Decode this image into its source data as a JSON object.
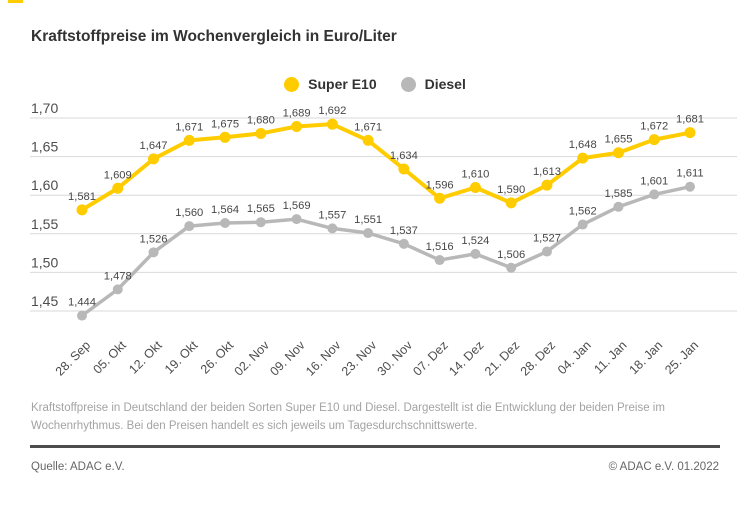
{
  "header": {
    "title": "Kraftstoffpreise im Wochenvergleich in Euro/Liter"
  },
  "chart_data": {
    "type": "line",
    "title": "Kraftstoffpreise im Wochenvergleich in Euro/Liter",
    "unit": "Euro/Liter",
    "x": [
      "28. Sep",
      "05. Okt",
      "12. Okt",
      "19. Okt",
      "26. Okt",
      "02. Nov",
      "09. Nov",
      "16. Nov",
      "23. Nov",
      "30. Nov",
      "07. Dez",
      "14. Dez",
      "21. Dez",
      "28. Dez",
      "04. Jan",
      "11. Jan",
      "18. Jan",
      "25. Jan"
    ],
    "series": [
      {
        "name": "Super E10",
        "color": "#FFCC00",
        "values": [
          1.581,
          1.609,
          1.647,
          1.671,
          1.675,
          1.68,
          1.689,
          1.692,
          1.671,
          1.634,
          1.596,
          1.61,
          1.59,
          1.613,
          1.648,
          1.655,
          1.672,
          1.681
        ]
      },
      {
        "name": "Diesel",
        "color": "#B8B8B8",
        "values": [
          1.444,
          1.478,
          1.526,
          1.56,
          1.564,
          1.565,
          1.569,
          1.557,
          1.551,
          1.537,
          1.516,
          1.524,
          1.506,
          1.527,
          1.562,
          1.585,
          1.601,
          1.611
        ]
      }
    ],
    "ylim": [
      1.44,
      1.7
    ],
    "yticks": [
      1.45,
      1.5,
      1.55,
      1.6,
      1.65,
      1.7
    ],
    "ytick_labels": [
      "1,45",
      "1,50",
      "1,55",
      "1,60",
      "1,65",
      "1,70"
    ],
    "grid": "horizontal",
    "legend_position": "top-center",
    "point_labels": "German decimal comma, 3 decimals, above each point"
  },
  "footer": {
    "caption": "Kraftstoffpreise in Deutschland der beiden Sorten Super E10 und Diesel. Dargestellt ist die Entwicklung der beiden Preise im Wochenrhythmus. Bei den Preisen handelt es sich jeweils um Tagesdurchschnittswerte.",
    "source": "Quelle: ADAC e.V.",
    "copyright": "© ADAC e.V. 01.2022"
  },
  "colors": {
    "super_e10": "#FFCC00",
    "diesel": "#B8B8B8",
    "gridline": "#D9D9D9",
    "axis_text": "#4D4D4D",
    "value_text": "#474747",
    "title_text": "#333333",
    "caption_text": "#A3A3A3",
    "divider": "#4D4D4D",
    "footer_text": "#666666",
    "background": "#FFFFFF"
  }
}
